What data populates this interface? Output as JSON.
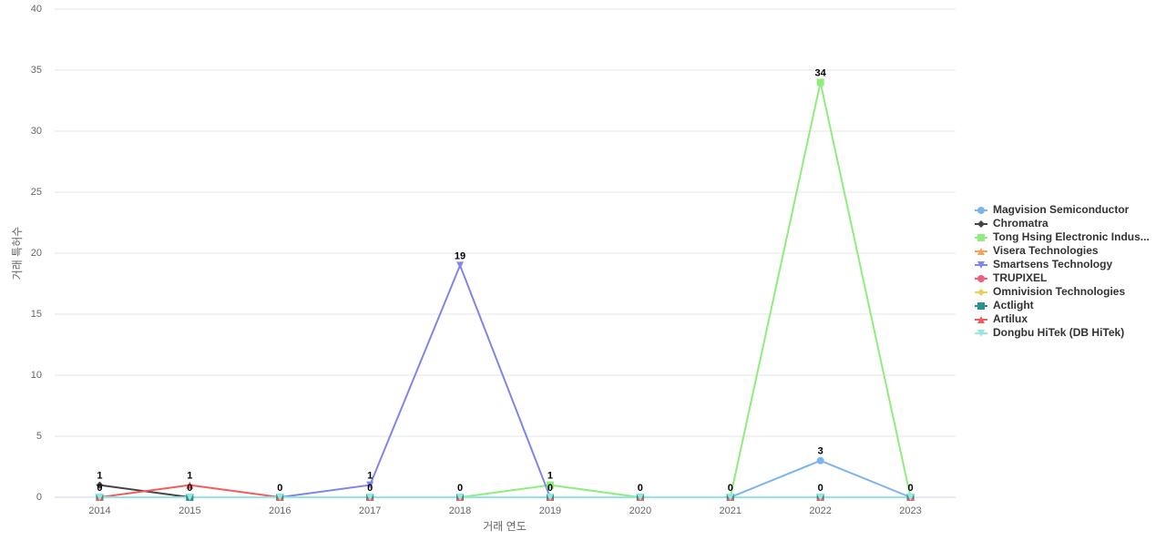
{
  "chart_data": {
    "type": "line",
    "x_label": "거래 연도",
    "y_label": "거래 특허수",
    "categories": [
      "2014",
      "2015",
      "2016",
      "2017",
      "2018",
      "2019",
      "2020",
      "2021",
      "2022",
      "2023"
    ],
    "ylim": [
      0,
      40
    ],
    "yticks": [
      0,
      5,
      10,
      15,
      20,
      25,
      30,
      35,
      40
    ],
    "grid": true,
    "legend": "right",
    "series": [
      {
        "name": "Magvision Semiconductor",
        "color": "#7cb5ec",
        "marker": "circle",
        "values": [
          0,
          0,
          0,
          0,
          0,
          0,
          0,
          0,
          3,
          0
        ]
      },
      {
        "name": "Chromatra",
        "color": "#434348",
        "marker": "diamond",
        "values": [
          1,
          0,
          0,
          0,
          0,
          0,
          0,
          0,
          0,
          0
        ]
      },
      {
        "name": "Tong Hsing Electronic Indus...",
        "color": "#90ed7d",
        "marker": "square",
        "values": [
          0,
          0,
          0,
          0,
          0,
          1,
          0,
          0,
          34,
          0
        ]
      },
      {
        "name": "Visera Technologies",
        "color": "#f7a35c",
        "marker": "triangle",
        "values": [
          0,
          0,
          0,
          0,
          0,
          0,
          0,
          0,
          0,
          0
        ]
      },
      {
        "name": "Smartsens Technology",
        "color": "#8085e9",
        "marker": "triangle-down",
        "values": [
          0,
          0,
          0,
          1,
          19,
          0,
          0,
          0,
          0,
          0
        ]
      },
      {
        "name": "TRUPIXEL",
        "color": "#f15c80",
        "marker": "circle",
        "values": [
          0,
          0,
          0,
          0,
          0,
          0,
          0,
          0,
          0,
          0
        ]
      },
      {
        "name": "Omnivision Technologies",
        "color": "#e4d354",
        "marker": "diamond",
        "values": [
          0,
          0,
          0,
          0,
          0,
          0,
          0,
          0,
          0,
          0
        ]
      },
      {
        "name": "Actlight",
        "color": "#2b908f",
        "marker": "square",
        "values": [
          0,
          0,
          0,
          0,
          0,
          0,
          0,
          0,
          0,
          0
        ]
      },
      {
        "name": "Artilux",
        "color": "#f45b5b",
        "marker": "triangle",
        "values": [
          0,
          1,
          0,
          0,
          0,
          0,
          0,
          0,
          0,
          0
        ]
      },
      {
        "name": "Dongbu HiTek (DB HiTek)",
        "color": "#91e8e1",
        "marker": "triangle-down",
        "values": [
          0,
          0,
          0,
          0,
          0,
          0,
          0,
          0,
          0,
          0
        ]
      }
    ]
  }
}
